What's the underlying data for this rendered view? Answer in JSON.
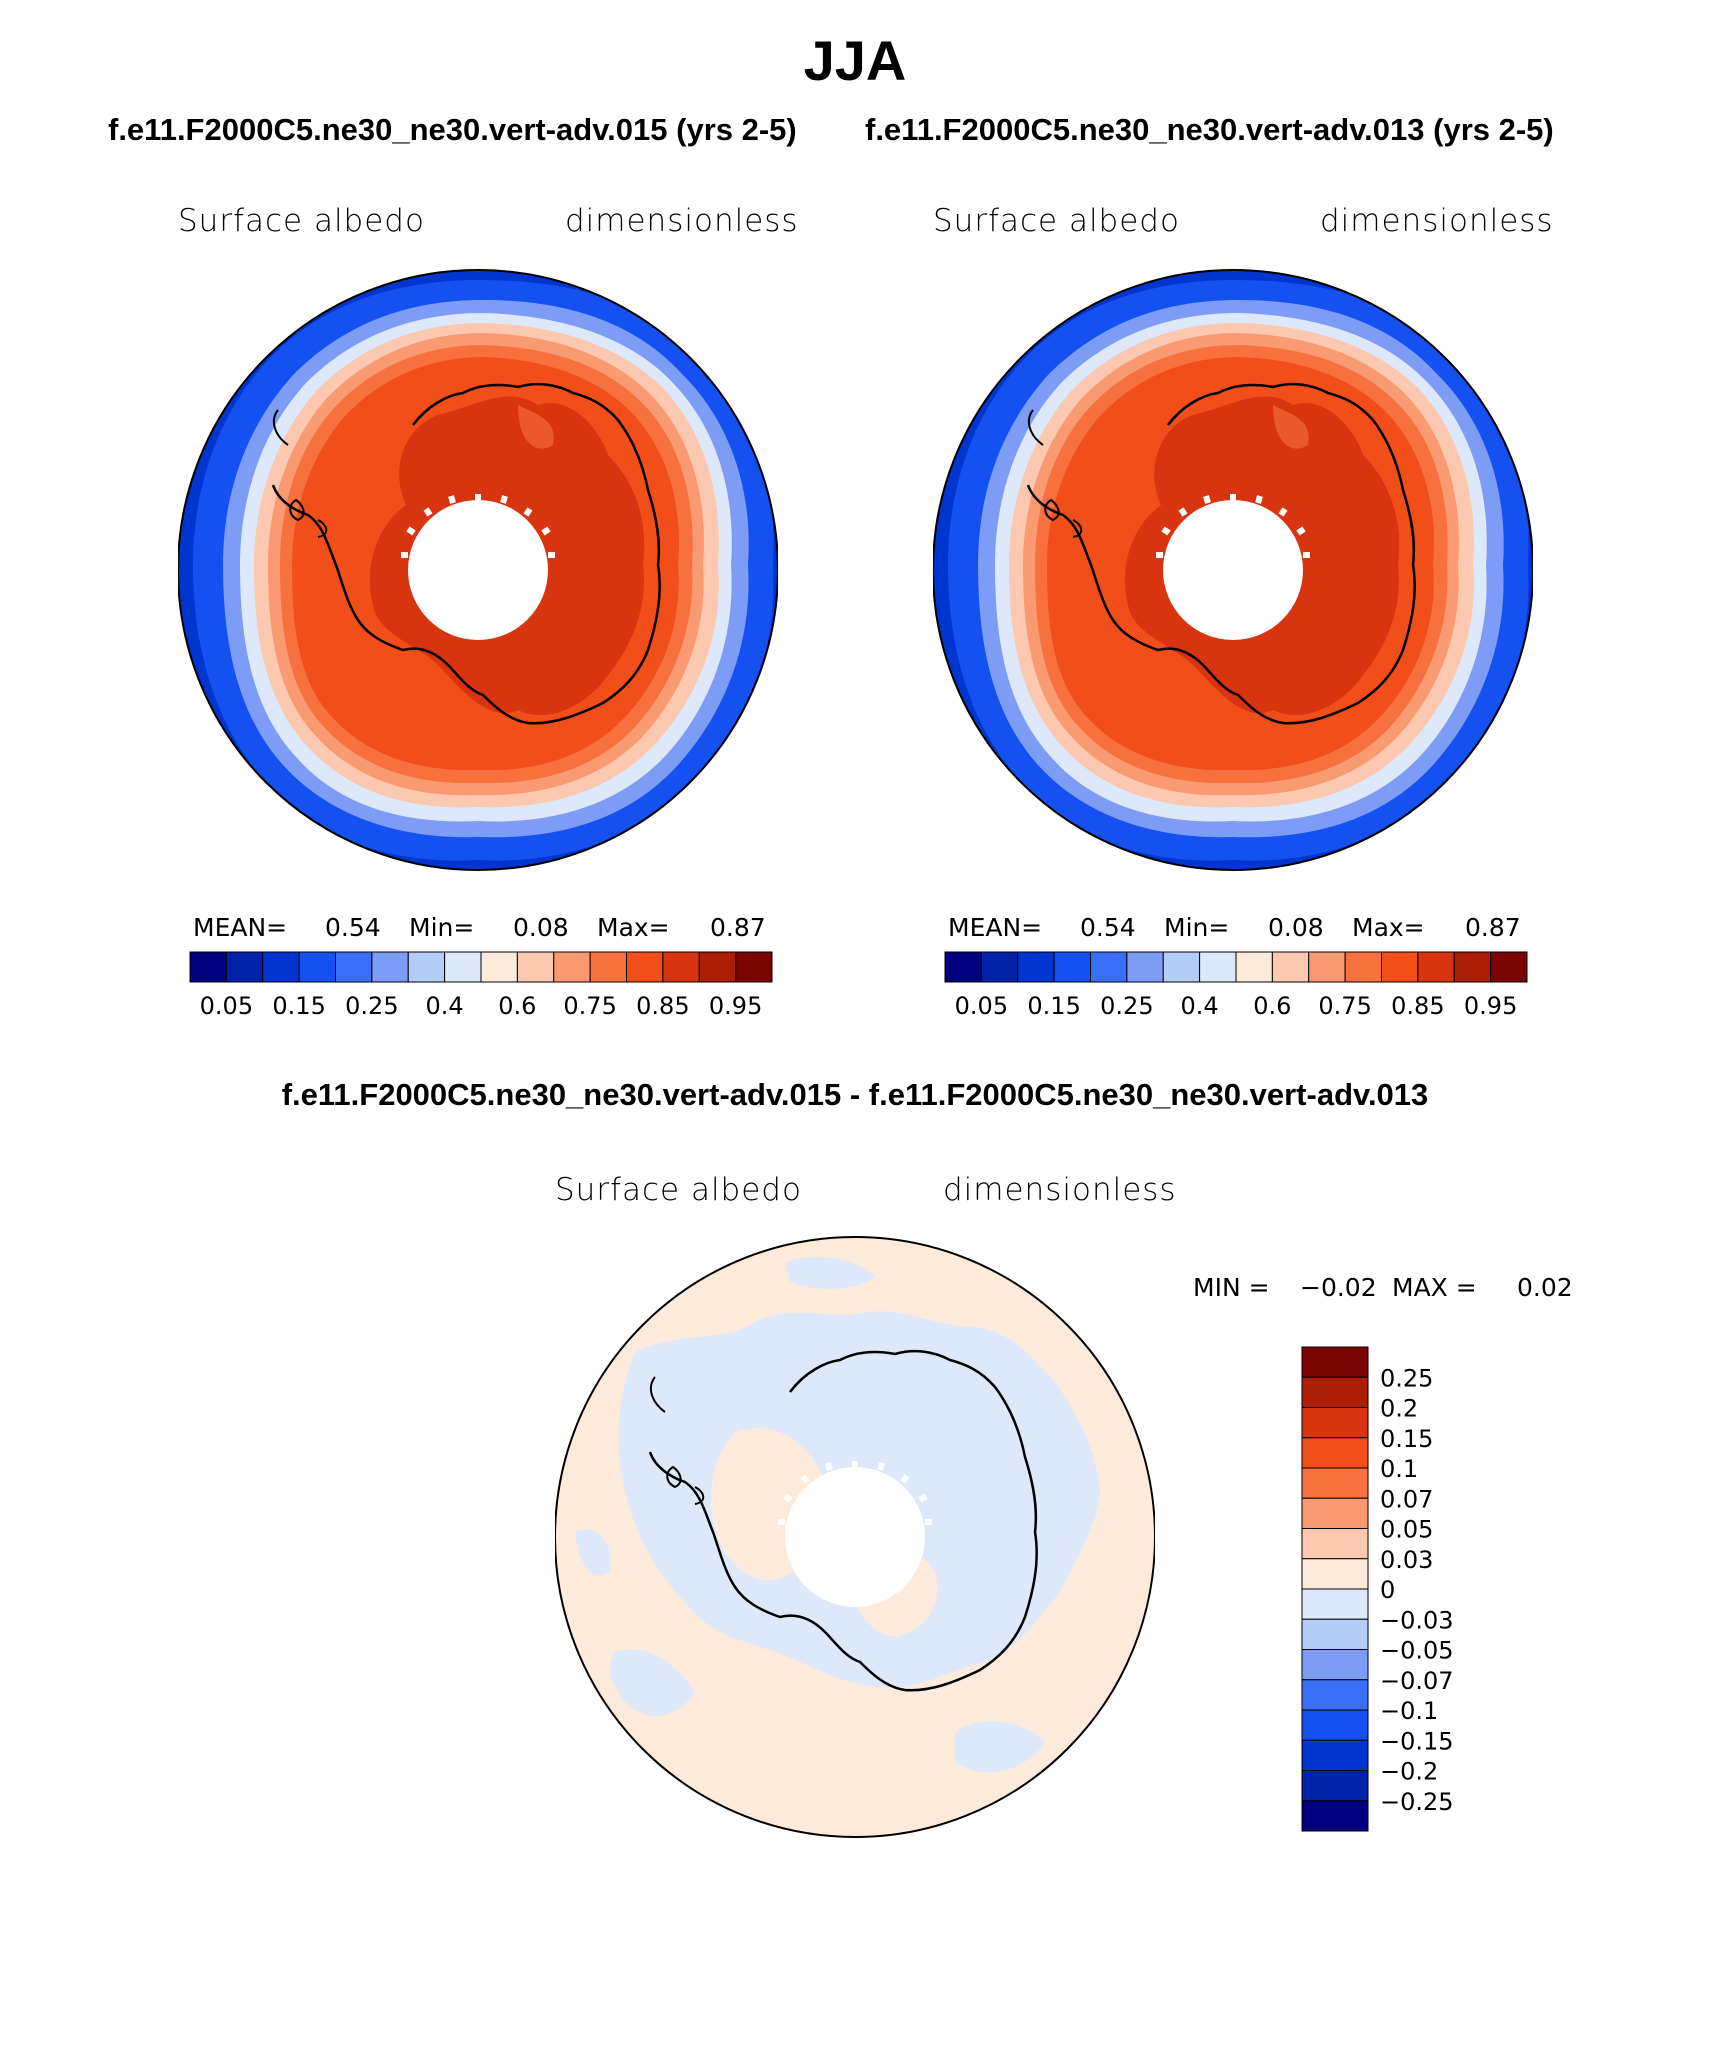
{
  "title": "JJA",
  "panels": [
    {
      "case": "f.e11.F2000C5.ne30_ne30.vert-adv.015 (yrs 2-5)",
      "variable": "Surface albedo",
      "units": "dimensionless",
      "stats": {
        "mean_label": "MEAN=",
        "mean": "0.54",
        "min_label": "Min=",
        "min": "0.08",
        "max_label": "Max=",
        "max": "0.87"
      }
    },
    {
      "case": "f.e11.F2000C5.ne30_ne30.vert-adv.013 (yrs 2-5)",
      "variable": "Surface albedo",
      "units": "dimensionless",
      "stats": {
        "mean_label": "MEAN=",
        "mean": "0.54",
        "min_label": "Min=",
        "min": "0.08",
        "max_label": "Max=",
        "max": "0.87"
      }
    }
  ],
  "abs_colorbar": {
    "colors": [
      "#00007f",
      "#0022a8",
      "#0035cf",
      "#1550f0",
      "#3a6ef5",
      "#7c9cf5",
      "#b4ccf8",
      "#dde9fb",
      "#fcebdb",
      "#fcc8af",
      "#f99a72",
      "#f7713f",
      "#f24e1a",
      "#d83410",
      "#ac1e05",
      "#7a0403"
    ],
    "tick_labels": [
      "0.05",
      "0.15",
      "0.25",
      "0.4",
      "0.6",
      "0.75",
      "0.85",
      "0.95"
    ]
  },
  "difference": {
    "title": "f.e11.F2000C5.ne30_ne30.vert-adv.015 - f.e11.F2000C5.ne30_ne30.vert-adv.013",
    "variable": "Surface albedo",
    "units": "dimensionless",
    "stats": {
      "min_label": "MIN =",
      "min": "−0.02",
      "max_label": "MAX =",
      "max": "0.02"
    },
    "colorbar": {
      "colors": [
        "#7a0403",
        "#ac1e05",
        "#d83410",
        "#f24e1a",
        "#f7713f",
        "#f99a72",
        "#fcc8af",
        "#fdeadb",
        "#dde9fb",
        "#b4ccf8",
        "#7c9cf5",
        "#3a6ef5",
        "#1550f0",
        "#0035cf",
        "#0022a8",
        "#00007f"
      ],
      "tick_labels": [
        "0.25",
        "0.2",
        "0.15",
        "0.1",
        "0.07",
        "0.05",
        "0.03",
        "0",
        "−0.03",
        "−0.05",
        "−0.07",
        "−0.1",
        "−0.15",
        "−0.2",
        "−0.25"
      ]
    }
  }
}
